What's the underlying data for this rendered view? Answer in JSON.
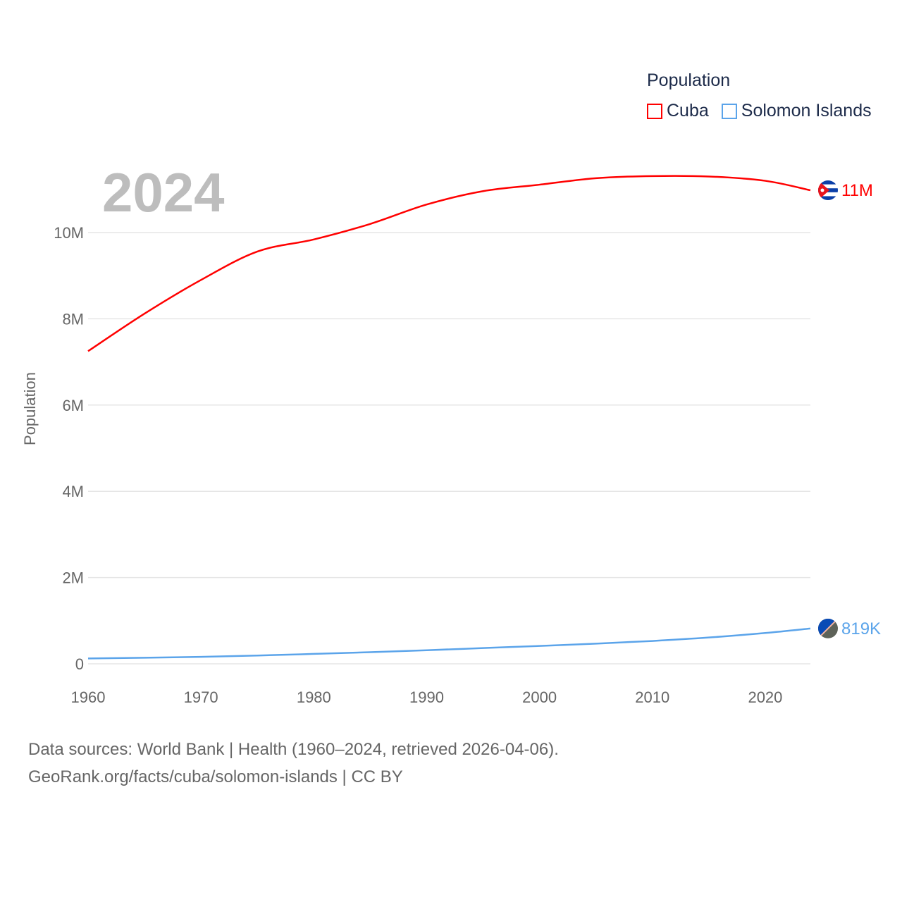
{
  "chart_data": {
    "type": "line",
    "title": "",
    "ylabel": "Population",
    "xlabel": "",
    "legend_title": "Population",
    "legend_placement": "top-right",
    "year_label": "2024",
    "xlim": [
      1960,
      2024
    ],
    "ylim": [
      0,
      11500000
    ],
    "x_ticks": [
      1960,
      1970,
      1980,
      1990,
      2000,
      2010,
      2020
    ],
    "x_tick_labels": [
      "1960",
      "1970",
      "1980",
      "1990",
      "2000",
      "2010",
      "2020"
    ],
    "y_ticks": [
      0,
      2000000,
      4000000,
      6000000,
      8000000,
      10000000
    ],
    "y_tick_labels": [
      "0",
      "2M",
      "4M",
      "6M",
      "8M",
      "10M"
    ],
    "grid": true,
    "x": [
      1960,
      1965,
      1970,
      1975,
      1980,
      1985,
      1990,
      1995,
      2000,
      2005,
      2010,
      2015,
      2020,
      2024
    ],
    "series": [
      {
        "name": "Cuba",
        "color": "#ff0000",
        "end_label": "11M",
        "flag": "cuba-flag",
        "values": [
          7250000,
          8120000,
          8900000,
          9560000,
          9840000,
          10200000,
          10650000,
          10960000,
          11110000,
          11260000,
          11310000,
          11300000,
          11200000,
          10980000
        ]
      },
      {
        "name": "Solomon Islands",
        "color": "#5ba4ea",
        "end_label": "819K",
        "flag": "solomon-islands-flag",
        "values": [
          125000,
          140000,
          162000,
          192000,
          230000,
          270000,
          315000,
          365000,
          415000,
          468000,
          530000,
          610000,
          715000,
          819000
        ]
      }
    ]
  },
  "footer": {
    "line1": "Data sources: World Bank | Health (1960–2024, retrieved 2026-04-06).",
    "line2": "GeoRank.org/facts/cuba/solomon-islands | CC BY"
  }
}
